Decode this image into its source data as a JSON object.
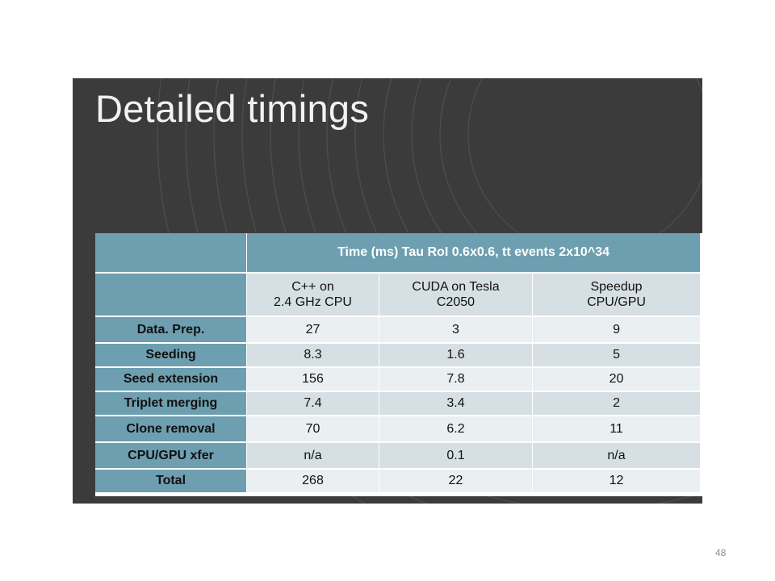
{
  "slide": {
    "title": "Detailed timings",
    "page_number": "48"
  },
  "table": {
    "span_header": "Time (ms)  Tau RoI 0.6x0.6, tt events 2x10^34",
    "columns": [
      {
        "line1": "C++ on",
        "line2": "2.4 GHz CPU"
      },
      {
        "line1": "CUDA on Tesla",
        "line2": "C2050"
      },
      {
        "line1": "Speedup",
        "line2": "CPU/GPU"
      }
    ],
    "rows": [
      {
        "label": "Data. Prep.",
        "cpu": "27",
        "gpu": "3",
        "speedup": "9"
      },
      {
        "label": "Seeding",
        "cpu": "8.3",
        "gpu": "1.6",
        "speedup": "5"
      },
      {
        "label": "Seed extension",
        "cpu": "156",
        "gpu": "7.8",
        "speedup": "20"
      },
      {
        "label": "Triplet merging",
        "cpu": "7.4",
        "gpu": "3.4",
        "speedup": "2"
      },
      {
        "label": "Clone removal",
        "cpu": "70",
        "gpu": "6.2",
        "speedup": "11"
      },
      {
        "label": "CPU/GPU xfer",
        "cpu": "n/a",
        "gpu": "0.1",
        "speedup": "n/a"
      },
      {
        "label": "Total",
        "cpu": "268",
        "gpu": "22",
        "speedup": "12"
      }
    ]
  },
  "colors": {
    "slide_background": "#3b3b3b",
    "header_teal": "#6d9fb0",
    "row_light": "#eaeff1",
    "row_dark": "#d6e0e4"
  }
}
